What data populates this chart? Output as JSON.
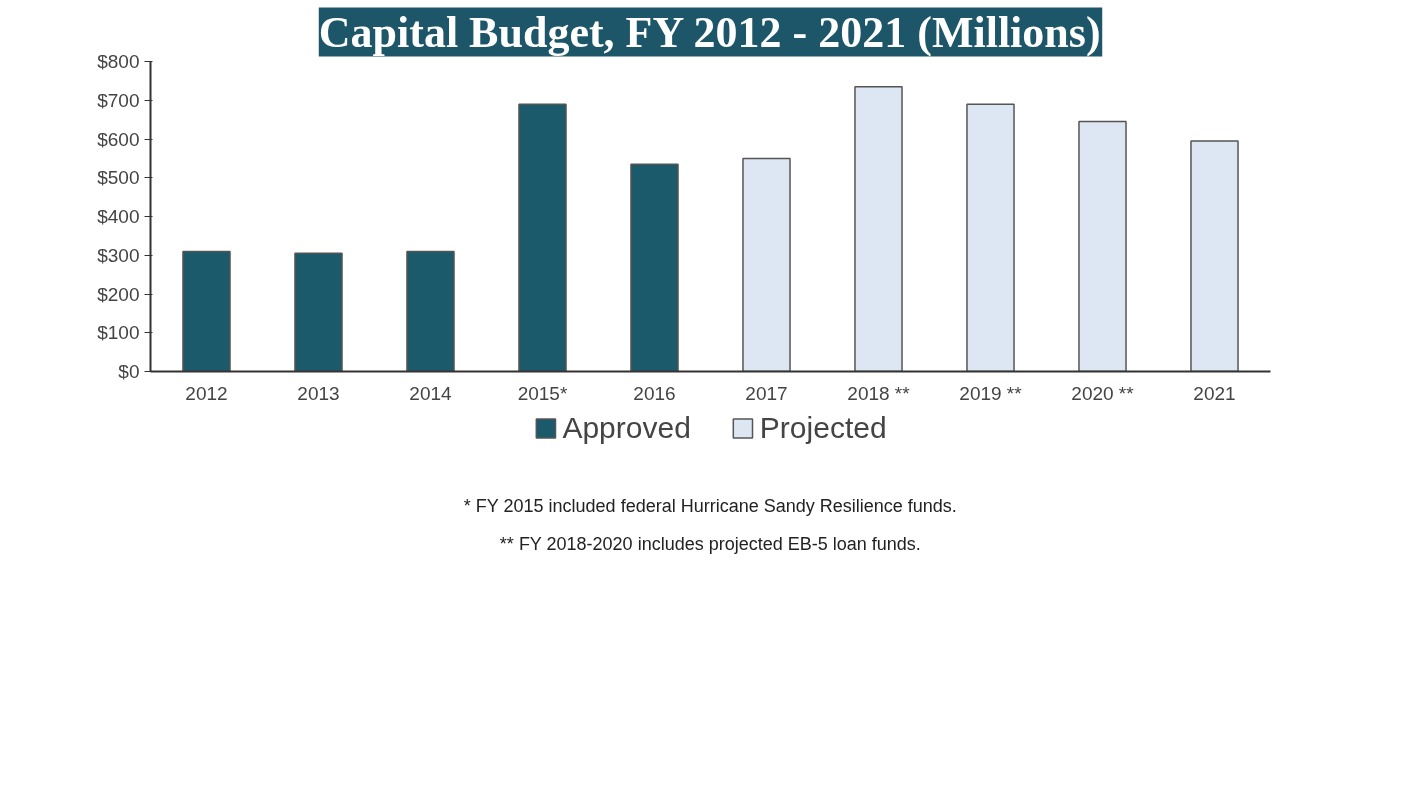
{
  "chart_data": {
    "type": "bar",
    "title": "Capital Budget, FY 2012 - 2021 (Millions)",
    "categories": [
      "2012",
      "2013",
      "2014",
      "2015*",
      "2016",
      "2017",
      "2018 **",
      "2019 **",
      "2020 **",
      "2021"
    ],
    "series": [
      {
        "name": "Approved",
        "color": "#1b5a6b",
        "values": [
          310,
          305,
          310,
          690,
          535,
          null,
          null,
          null,
          null,
          null
        ]
      },
      {
        "name": "Projected",
        "color": "#dde6f3",
        "values": [
          null,
          null,
          null,
          null,
          null,
          550,
          735,
          690,
          645,
          595
        ]
      }
    ],
    "ylim": [
      0,
      800
    ],
    "yticks": [
      {
        "value": 0,
        "label": "$0"
      },
      {
        "value": 100,
        "label": "$100"
      },
      {
        "value": 200,
        "label": "$200"
      },
      {
        "value": 300,
        "label": "$300"
      },
      {
        "value": 400,
        "label": "$400"
      },
      {
        "value": 500,
        "label": "$500"
      },
      {
        "value": 600,
        "label": "$600"
      },
      {
        "value": 700,
        "label": "$700"
      },
      {
        "value": 800,
        "label": "$800"
      }
    ],
    "grid": false,
    "legend": "bottom",
    "annotations": [
      "* FY 2015 included federal Hurricane Sandy Resilience funds.",
      "** FY 2018-2020 includes projected EB-5 loan funds."
    ]
  }
}
